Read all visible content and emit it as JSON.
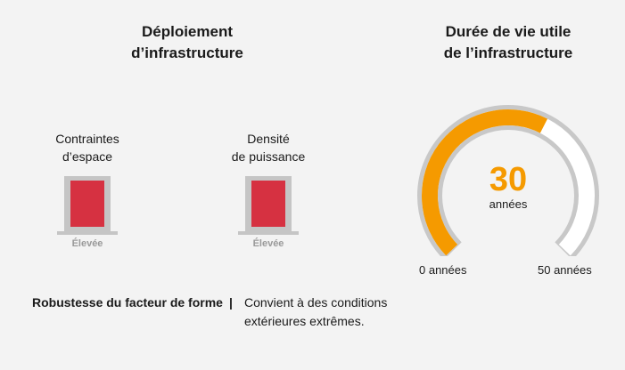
{
  "deployment": {
    "title_line1": "Déploiement",
    "title_line2": "d’infrastructure",
    "indicators": [
      {
        "label_line1": "Contraintes",
        "label_line2": "d’espace",
        "level": "Élevée",
        "fill_color": "#d63141"
      },
      {
        "label_line1": "Densité",
        "label_line2": "de puissance",
        "level": "Élevée",
        "fill_color": "#d63141"
      }
    ]
  },
  "lifetime": {
    "title_line1": "Durée de vie utile",
    "title_line2": "de l’infrastructure",
    "value": "30",
    "unit": "années",
    "min_label": "0 années",
    "max_label": "50 années",
    "min": 0,
    "max": 50,
    "current": 30,
    "fill_color": "#f59a00",
    "track_color": "#c8c8c8"
  },
  "ruggedness": {
    "label": "Robustesse du facteur de forme",
    "separator": "|",
    "text_line1": "Convient à des conditions",
    "text_line2": "extérieures extrêmes."
  }
}
